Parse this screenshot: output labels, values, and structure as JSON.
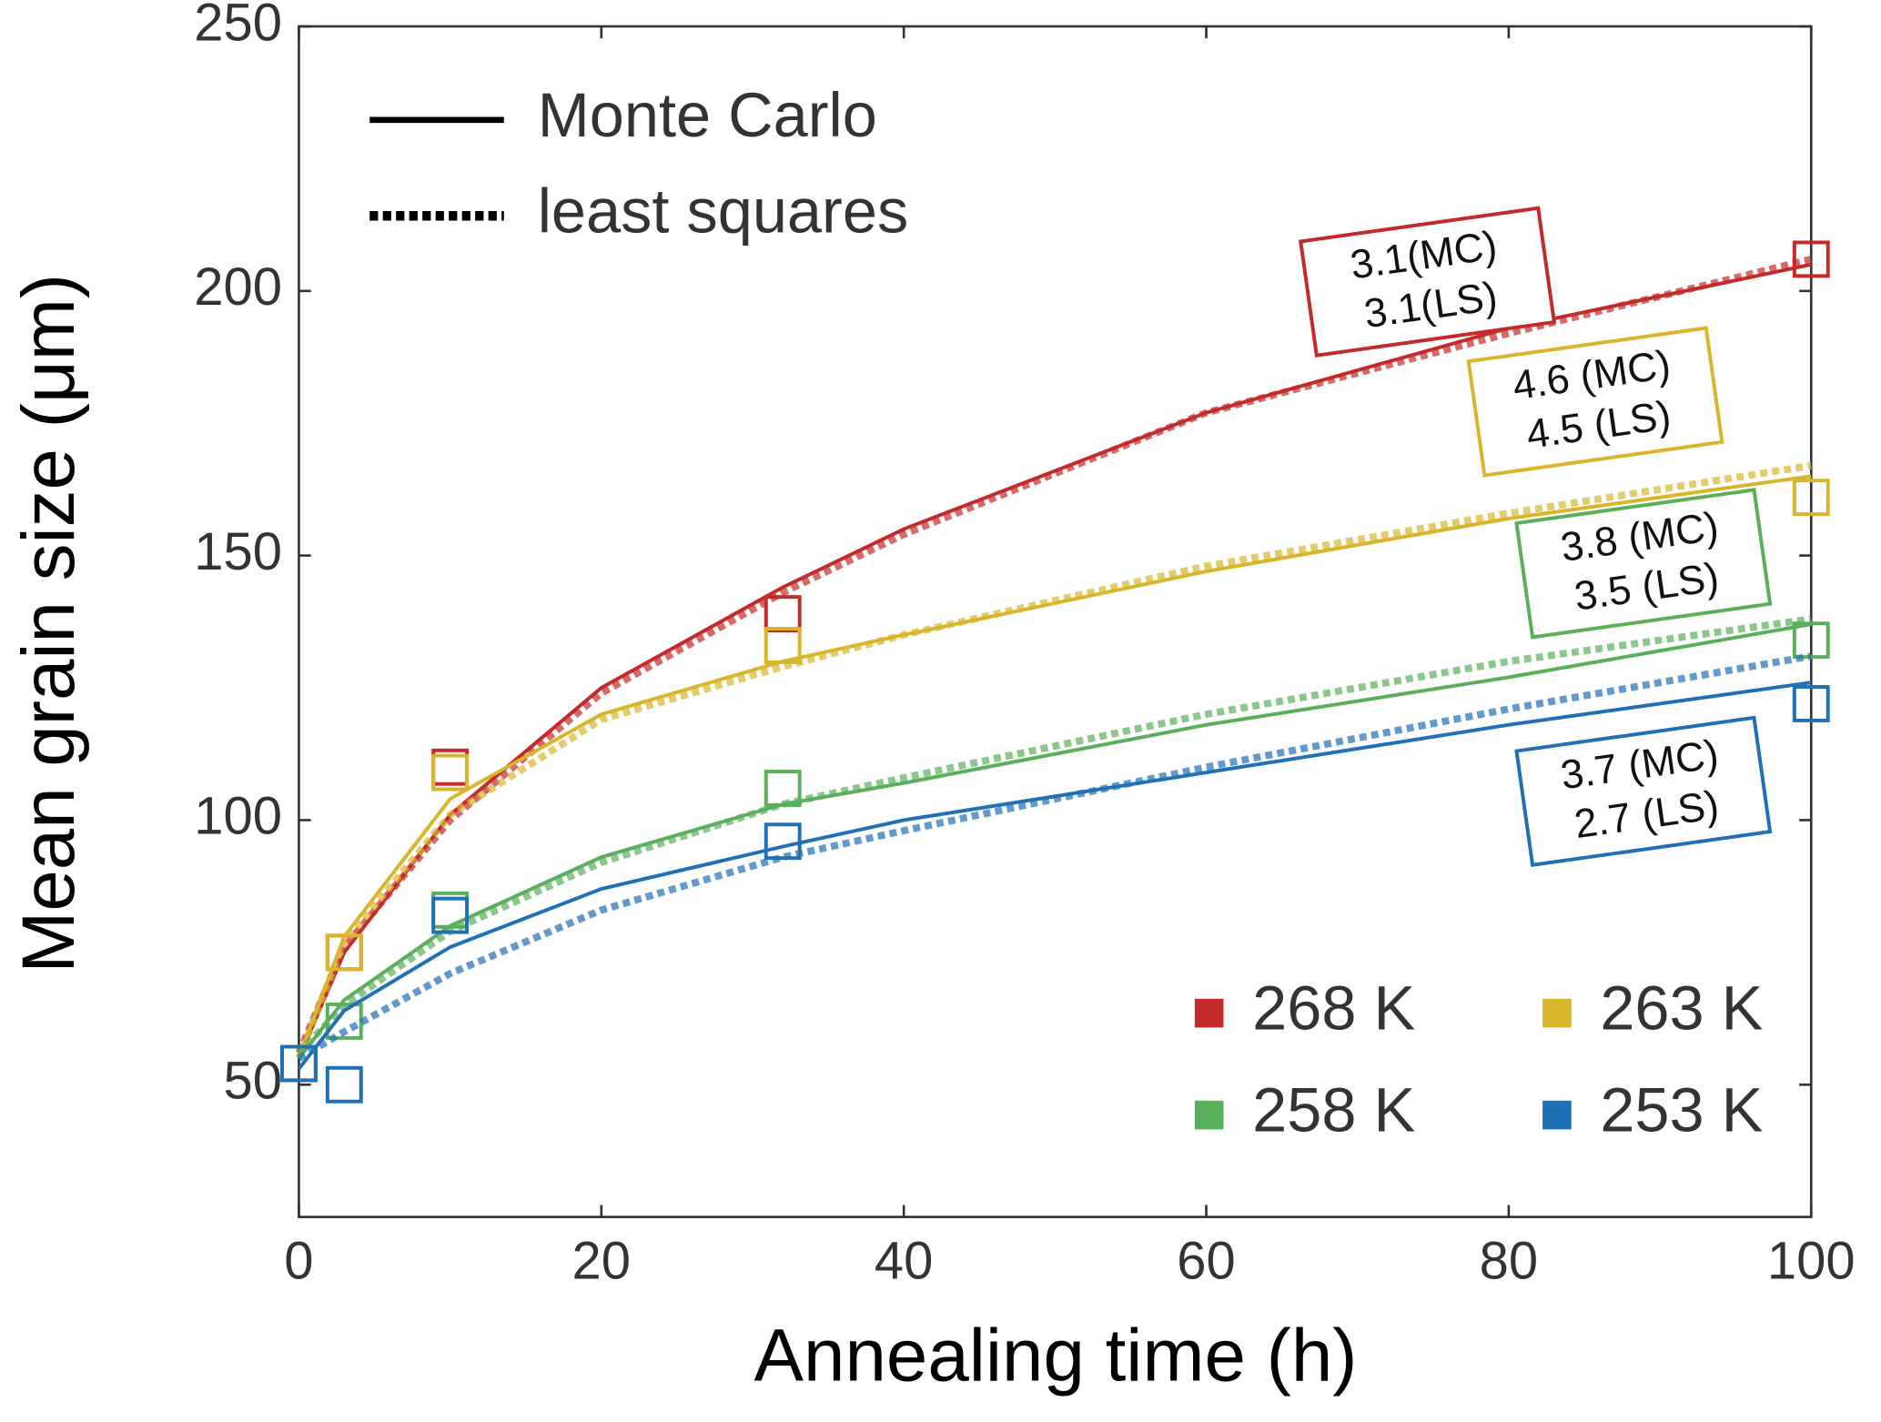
{
  "chart_data": {
    "type": "line",
    "x_label": "Annealing time (h)",
    "y_label": "Mean grain size (μm)",
    "xlim": [
      0,
      100
    ],
    "xticks": [
      0,
      20,
      40,
      60,
      80,
      100
    ],
    "ylim": [
      25,
      250
    ],
    "yticks": [
      50,
      100,
      150,
      200,
      250
    ],
    "line_styles": [
      "Monte Carlo",
      "least squares"
    ],
    "x": [
      0,
      3,
      10,
      32,
      100
    ],
    "fit_x": [
      0,
      3,
      10,
      20,
      32,
      40,
      60,
      80,
      100
    ],
    "series": [
      {
        "name": "268 K",
        "color": "#c42a2a",
        "values": [
          54,
          75,
          110,
          139,
          206
        ],
        "mc": [
          55,
          75,
          101,
          125,
          144,
          155,
          177,
          193,
          205
        ],
        "ls": [
          56,
          76,
          100,
          124,
          143,
          154,
          177,
          192,
          206
        ],
        "annotation": [
          "3.1(MC)",
          "3.1(LS)"
        ]
      },
      {
        "name": "263 K",
        "color": "#d9b52c",
        "values": [
          54,
          75,
          109,
          133,
          161
        ],
        "mc": [
          55,
          78,
          104,
          120,
          130,
          135,
          147,
          157,
          165
        ],
        "ls": [
          55,
          77,
          101,
          119,
          129,
          135,
          148,
          158,
          167
        ],
        "annotation": [
          "4.6 (MC)",
          "4.5 (LS)"
        ]
      },
      {
        "name": "258 K",
        "color": "#5aaf5a",
        "values": [
          54,
          62,
          83,
          106,
          134
        ],
        "mc": [
          55,
          66,
          80,
          93,
          103,
          107,
          118,
          127,
          137
        ],
        "ls": [
          56,
          65,
          79,
          92,
          103,
          108,
          120,
          130,
          138
        ],
        "annotation": [
          "3.8 (MC)",
          "3.5 (LS)"
        ]
      },
      {
        "name": "253 K",
        "color": "#1f70b5",
        "values": [
          54,
          50,
          82,
          96,
          122
        ],
        "mc": [
          53,
          64,
          76,
          87,
          95,
          100,
          109,
          118,
          126
        ],
        "ls": [
          55,
          60,
          71,
          83,
          93,
          98,
          110,
          121,
          131
        ],
        "annotation": [
          "3.7 (MC)",
          "2.7 (LS)"
        ]
      }
    ]
  }
}
